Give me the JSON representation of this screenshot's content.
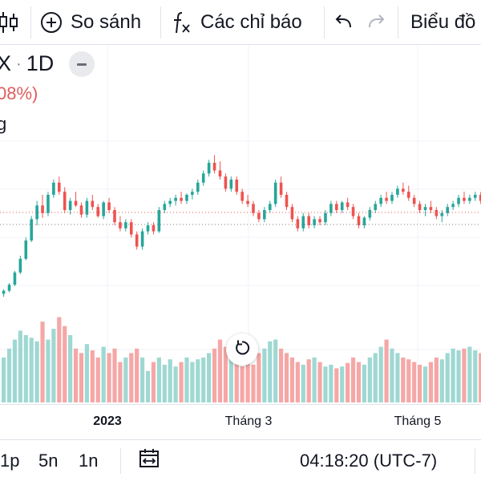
{
  "toolbar": {
    "compare_label": "So sánh",
    "indicators_label": "Các chỉ báo",
    "chart_label": "Biểu đồ",
    "icons": [
      "candles-icon",
      "plus-circle-icon",
      "fx-icon",
      "undo-icon",
      "redo-icon"
    ]
  },
  "legend": {
    "symbol": "X",
    "interval": "1D",
    "change": "08%)",
    "volume_label": "g"
  },
  "colors": {
    "up": "#26a69a",
    "down": "#ef5350",
    "up_volume": "#9fd8d2",
    "down_volume": "#f5a7a6"
  },
  "chart_data": {
    "type": "candlestick",
    "x_ticks": [
      "2023",
      "Tháng 3",
      "Tháng 5"
    ],
    "relative_ohlc": [
      [
        0.05,
        0.08,
        0.03,
        0.07
      ],
      [
        0.07,
        0.12,
        0.06,
        0.11
      ],
      [
        0.11,
        0.2,
        0.1,
        0.19
      ],
      [
        0.19,
        0.3,
        0.18,
        0.28
      ],
      [
        0.28,
        0.42,
        0.27,
        0.4
      ],
      [
        0.4,
        0.56,
        0.39,
        0.54
      ],
      [
        0.54,
        0.66,
        0.5,
        0.63
      ],
      [
        0.63,
        0.7,
        0.55,
        0.58
      ],
      [
        0.58,
        0.72,
        0.56,
        0.7
      ],
      [
        0.7,
        0.8,
        0.68,
        0.78
      ],
      [
        0.78,
        0.82,
        0.7,
        0.72
      ],
      [
        0.72,
        0.75,
        0.58,
        0.6
      ],
      [
        0.6,
        0.68,
        0.57,
        0.66
      ],
      [
        0.66,
        0.72,
        0.62,
        0.63
      ],
      [
        0.63,
        0.65,
        0.55,
        0.57
      ],
      [
        0.57,
        0.68,
        0.55,
        0.66
      ],
      [
        0.66,
        0.7,
        0.6,
        0.62
      ],
      [
        0.62,
        0.64,
        0.55,
        0.56
      ],
      [
        0.56,
        0.66,
        0.54,
        0.65
      ],
      [
        0.65,
        0.68,
        0.58,
        0.6
      ],
      [
        0.6,
        0.62,
        0.5,
        0.52
      ],
      [
        0.52,
        0.56,
        0.46,
        0.48
      ],
      [
        0.48,
        0.54,
        0.46,
        0.52
      ],
      [
        0.52,
        0.54,
        0.42,
        0.44
      ],
      [
        0.44,
        0.46,
        0.34,
        0.36
      ],
      [
        0.36,
        0.48,
        0.34,
        0.46
      ],
      [
        0.46,
        0.52,
        0.44,
        0.5
      ],
      [
        0.5,
        0.52,
        0.44,
        0.46
      ],
      [
        0.46,
        0.62,
        0.45,
        0.6
      ],
      [
        0.6,
        0.66,
        0.58,
        0.64
      ],
      [
        0.64,
        0.68,
        0.62,
        0.66
      ],
      [
        0.66,
        0.7,
        0.63,
        0.68
      ],
      [
        0.68,
        0.72,
        0.64,
        0.66
      ],
      [
        0.66,
        0.71,
        0.64,
        0.7
      ],
      [
        0.7,
        0.74,
        0.67,
        0.72
      ],
      [
        0.72,
        0.8,
        0.7,
        0.78
      ],
      [
        0.78,
        0.86,
        0.76,
        0.84
      ],
      [
        0.84,
        0.93,
        0.82,
        0.91
      ],
      [
        0.91,
        0.96,
        0.84,
        0.86
      ],
      [
        0.86,
        0.92,
        0.8,
        0.82
      ],
      [
        0.82,
        0.84,
        0.72,
        0.74
      ],
      [
        0.74,
        0.82,
        0.72,
        0.8
      ],
      [
        0.8,
        0.82,
        0.7,
        0.72
      ],
      [
        0.72,
        0.74,
        0.64,
        0.66
      ],
      [
        0.66,
        0.7,
        0.62,
        0.64
      ],
      [
        0.64,
        0.66,
        0.56,
        0.58
      ],
      [
        0.58,
        0.6,
        0.52,
        0.54
      ],
      [
        0.54,
        0.62,
        0.52,
        0.6
      ],
      [
        0.6,
        0.66,
        0.58,
        0.64
      ],
      [
        0.64,
        0.8,
        0.62,
        0.78
      ],
      [
        0.78,
        0.82,
        0.68,
        0.7
      ],
      [
        0.7,
        0.72,
        0.6,
        0.62
      ],
      [
        0.62,
        0.64,
        0.52,
        0.54
      ],
      [
        0.54,
        0.56,
        0.46,
        0.48
      ],
      [
        0.48,
        0.58,
        0.46,
        0.56
      ],
      [
        0.56,
        0.58,
        0.48,
        0.5
      ],
      [
        0.5,
        0.56,
        0.48,
        0.54
      ],
      [
        0.54,
        0.56,
        0.5,
        0.52
      ],
      [
        0.52,
        0.6,
        0.5,
        0.58
      ],
      [
        0.58,
        0.66,
        0.56,
        0.64
      ],
      [
        0.64,
        0.66,
        0.58,
        0.6
      ],
      [
        0.6,
        0.66,
        0.58,
        0.65
      ],
      [
        0.65,
        0.68,
        0.6,
        0.62
      ],
      [
        0.62,
        0.64,
        0.54,
        0.56
      ],
      [
        0.56,
        0.58,
        0.48,
        0.5
      ],
      [
        0.5,
        0.56,
        0.48,
        0.55
      ],
      [
        0.55,
        0.62,
        0.53,
        0.6
      ],
      [
        0.6,
        0.66,
        0.58,
        0.64
      ],
      [
        0.64,
        0.7,
        0.62,
        0.68
      ],
      [
        0.68,
        0.72,
        0.64,
        0.66
      ],
      [
        0.66,
        0.72,
        0.64,
        0.7
      ],
      [
        0.7,
        0.76,
        0.68,
        0.74
      ],
      [
        0.74,
        0.78,
        0.7,
        0.72
      ],
      [
        0.72,
        0.76,
        0.66,
        0.68
      ],
      [
        0.68,
        0.7,
        0.62,
        0.64
      ],
      [
        0.64,
        0.66,
        0.58,
        0.6
      ],
      [
        0.6,
        0.64,
        0.56,
        0.62
      ],
      [
        0.62,
        0.66,
        0.58,
        0.6
      ],
      [
        0.6,
        0.62,
        0.54,
        0.56
      ],
      [
        0.56,
        0.6,
        0.52,
        0.58
      ],
      [
        0.58,
        0.64,
        0.56,
        0.62
      ],
      [
        0.62,
        0.66,
        0.6,
        0.64
      ],
      [
        0.64,
        0.7,
        0.62,
        0.68
      ],
      [
        0.68,
        0.72,
        0.64,
        0.66
      ],
      [
        0.66,
        0.7,
        0.64,
        0.68
      ],
      [
        0.68,
        0.72,
        0.66,
        0.7
      ],
      [
        0.7,
        0.72,
        0.64,
        0.66
      ]
    ],
    "relative_volume": [
      0.5,
      0.6,
      0.7,
      0.8,
      0.75,
      0.72,
      0.68,
      0.9,
      0.7,
      0.82,
      0.95,
      0.85,
      0.75,
      0.6,
      0.55,
      0.65,
      0.58,
      0.5,
      0.62,
      0.55,
      0.6,
      0.45,
      0.5,
      0.55,
      0.6,
      0.5,
      0.35,
      0.45,
      0.5,
      0.42,
      0.48,
      0.4,
      0.45,
      0.5,
      0.45,
      0.48,
      0.5,
      0.55,
      0.6,
      0.7,
      0.62,
      0.5,
      0.45,
      0.4,
      0.48,
      0.42,
      0.55,
      0.6,
      0.68,
      0.7,
      0.6,
      0.55,
      0.5,
      0.45,
      0.42,
      0.48,
      0.5,
      0.45,
      0.4,
      0.42,
      0.38,
      0.4,
      0.44,
      0.5,
      0.45,
      0.42,
      0.5,
      0.55,
      0.62,
      0.7,
      0.6,
      0.55,
      0.5,
      0.48,
      0.45,
      0.42,
      0.4,
      0.45,
      0.5,
      0.48,
      0.55,
      0.6,
      0.58,
      0.6,
      0.62,
      0.58,
      0.55
    ]
  },
  "bottombar": {
    "range_1": "1p",
    "range_2": "5n",
    "range_3": "1n",
    "time": "04:18:20 (UTC-7)"
  }
}
